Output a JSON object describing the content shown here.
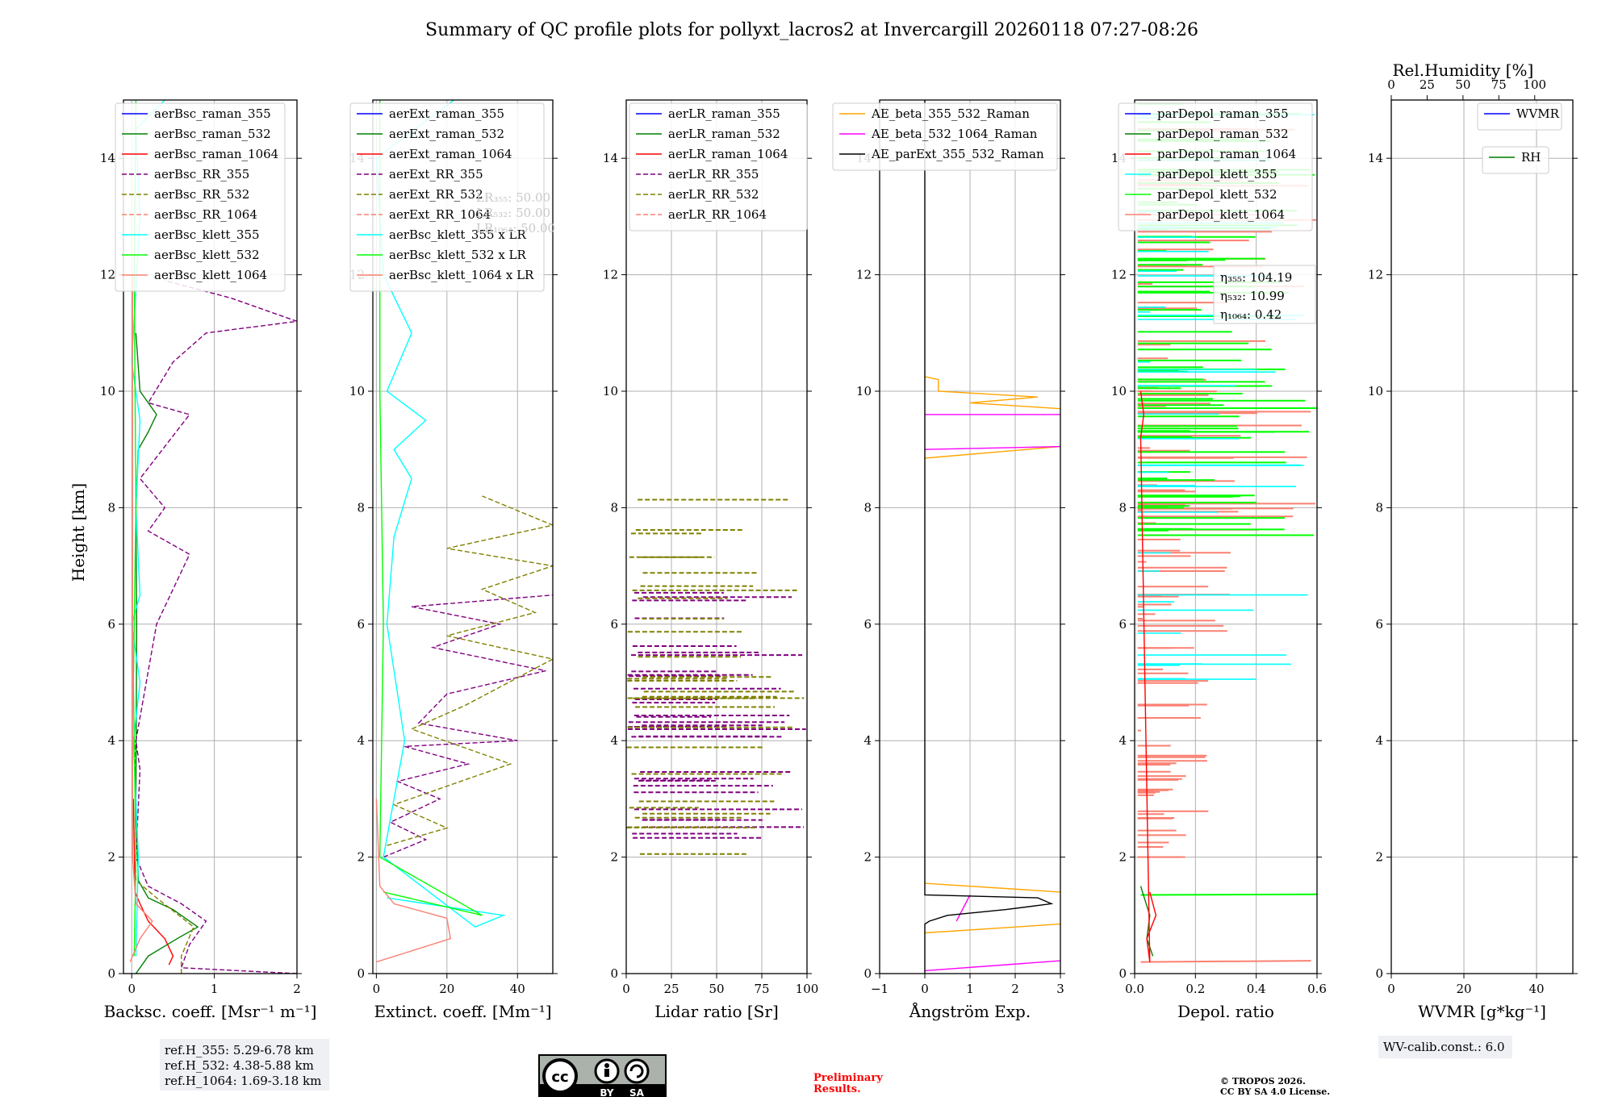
{
  "title": "Summary of QC profile plots for pollyxt_lacros2 at Invercargill 20260118 07:27-08:26",
  "ylabel": "Height [km]",
  "colors": {
    "blue": "#0000ff",
    "green": "#008000",
    "red": "#ff0000",
    "purple": "#800080",
    "olive": "#808000",
    "salmon": "#fa8072",
    "cyan": "#00ffff",
    "lime": "#00ff00",
    "orange": "#ffa500",
    "magenta": "#ff00ff",
    "black": "#000000",
    "redtext": "#ff0000"
  },
  "chart_data": [
    {
      "type": "line",
      "xlabel": "Backsc. coeff. [Msr⁻¹ m⁻¹]",
      "xlim": [
        -0.1,
        2
      ],
      "ylim": [
        0,
        15
      ],
      "xticks": [
        "0",
        "1",
        "2"
      ],
      "xtick_values": [
        0,
        1,
        2
      ],
      "yticks": [
        "0",
        "2",
        "4",
        "6",
        "8",
        "10",
        "12",
        "14"
      ],
      "legend_position": "top-left",
      "series": [
        {
          "name": "aerBsc_raman_355",
          "color": "blue",
          "style": "solid"
        },
        {
          "name": "aerBsc_raman_532",
          "color": "green",
          "style": "solid",
          "points": [
            [
              0.05,
              0
            ],
            [
              0.2,
              0.3
            ],
            [
              0.55,
              0.6
            ],
            [
              0.8,
              0.8
            ],
            [
              0.5,
              1.1
            ],
            [
              0.2,
              1.3
            ],
            [
              0.08,
              1.6
            ],
            [
              0.05,
              3
            ],
            [
              0.06,
              6
            ],
            [
              0.05,
              8
            ],
            [
              0.08,
              9
            ],
            [
              0.2,
              9.3
            ],
            [
              0.3,
              9.6
            ],
            [
              0.1,
              10
            ],
            [
              0.05,
              11
            ]
          ]
        },
        {
          "name": "aerBsc_raman_1064",
          "color": "red",
          "style": "solid",
          "points": [
            [
              0.45,
              0.15
            ],
            [
              0.5,
              0.3
            ],
            [
              0.4,
              0.6
            ],
            [
              0.2,
              0.9
            ],
            [
              0.1,
              1.2
            ],
            [
              0.04,
              1.4
            ],
            [
              0.02,
              3
            ]
          ]
        },
        {
          "name": "aerBsc_RR_355",
          "color": "purple",
          "style": "dashed",
          "points": [
            [
              2.0,
              0
            ],
            [
              0.6,
              0.1
            ],
            [
              0.7,
              0.5
            ],
            [
              0.9,
              0.9
            ],
            [
              0.6,
              1.2
            ],
            [
              0.2,
              1.5
            ],
            [
              0.05,
              2
            ],
            [
              0.1,
              3.5
            ],
            [
              0.05,
              4
            ],
            [
              0.3,
              6
            ],
            [
              0.7,
              7.2
            ],
            [
              0.2,
              7.6
            ],
            [
              0.4,
              8
            ],
            [
              0.1,
              8.5
            ],
            [
              0.7,
              9.6
            ],
            [
              0.2,
              9.8
            ],
            [
              0.5,
              10.5
            ],
            [
              0.9,
              11
            ],
            [
              2.0,
              11.2
            ],
            [
              1.2,
              11.6
            ],
            [
              0.4,
              11.9
            ]
          ]
        },
        {
          "name": "aerBsc_RR_532",
          "color": "olive",
          "style": "dashed",
          "points": [
            [
              0.6,
              0
            ],
            [
              0.6,
              0.3
            ],
            [
              0.75,
              0.8
            ],
            [
              0.3,
              1.3
            ],
            [
              0.05,
              1.6
            ],
            [
              0.04,
              4
            ]
          ]
        },
        {
          "name": "aerBsc_RR_1064",
          "color": "salmon",
          "style": "dashed"
        },
        {
          "name": "aerBsc_klett_355",
          "color": "cyan",
          "style": "solid",
          "points": [
            [
              0.05,
              0.3
            ],
            [
              0.08,
              2
            ],
            [
              0.02,
              4
            ],
            [
              0.1,
              5
            ],
            [
              0.0,
              6
            ],
            [
              0.1,
              6.5
            ],
            [
              0.05,
              8
            ],
            [
              0.1,
              9.5
            ],
            [
              0.0,
              10.5
            ],
            [
              0.1,
              13
            ],
            [
              0.05,
              14.5
            ],
            [
              0.4,
              15
            ]
          ]
        },
        {
          "name": "aerBsc_klett_532",
          "color": "lime",
          "style": "solid",
          "points": [
            [
              0.03,
              0.3
            ],
            [
              0.05,
              2
            ],
            [
              0.02,
              5
            ],
            [
              0.05,
              8
            ],
            [
              0.03,
              12
            ],
            [
              0.05,
              15
            ]
          ]
        },
        {
          "name": "aerBsc_klett_1064",
          "color": "salmon",
          "style": "solid",
          "points": [
            [
              -0.02,
              0.2
            ],
            [
              0.1,
              0.6
            ],
            [
              0.25,
              0.9
            ],
            [
              0.05,
              1.2
            ],
            [
              0.01,
              2
            ],
            [
              0.01,
              12
            ]
          ]
        }
      ]
    },
    {
      "type": "line",
      "xlabel": "Extinct. coeff. [Mm⁻¹]",
      "xlim": [
        -1,
        50
      ],
      "ylim": [
        0,
        15
      ],
      "xticks": [
        "0",
        "20",
        "40"
      ],
      "xtick_values": [
        0,
        20,
        40
      ],
      "yticks": [
        "0",
        "2",
        "4",
        "6",
        "8",
        "10",
        "12",
        "14"
      ],
      "legend_position": "top-left",
      "lidar_ratios": [
        "LR₃₅₅: 50.00",
        "LR₅₃₂: 50.00",
        "LR₁₀₆₄: 50.00"
      ],
      "series": [
        {
          "name": "aerExt_raman_355",
          "color": "blue",
          "style": "solid"
        },
        {
          "name": "aerExt_raman_532",
          "color": "green",
          "style": "solid"
        },
        {
          "name": "aerExt_raman_1064",
          "color": "red",
          "style": "solid"
        },
        {
          "name": "aerExt_RR_355",
          "color": "purple",
          "style": "dashed",
          "points": [
            [
              2,
              2
            ],
            [
              14,
              2.3
            ],
            [
              4,
              2.6
            ],
            [
              18,
              3
            ],
            [
              6,
              3.3
            ],
            [
              26,
              3.6
            ],
            [
              8,
              3.9
            ],
            [
              40,
              4
            ],
            [
              12,
              4.3
            ],
            [
              20,
              4.8
            ],
            [
              48,
              5.2
            ],
            [
              16,
              5.6
            ],
            [
              35,
              6
            ],
            [
              10,
              6.3
            ],
            [
              50,
              6.5
            ]
          ]
        },
        {
          "name": "aerExt_RR_532",
          "color": "olive",
          "style": "dashed",
          "points": [
            [
              3,
              2.2
            ],
            [
              20,
              2.5
            ],
            [
              5,
              2.9
            ],
            [
              38,
              3.6
            ],
            [
              10,
              4.2
            ],
            [
              25,
              4.6
            ],
            [
              50,
              5.4
            ],
            [
              20,
              5.8
            ],
            [
              45,
              6.2
            ],
            [
              30,
              6.6
            ],
            [
              50,
              7
            ],
            [
              20,
              7.3
            ],
            [
              50,
              7.7
            ],
            [
              30,
              8.2
            ]
          ]
        },
        {
          "name": "aerExt_RR_1064",
          "color": "salmon",
          "style": "dashed"
        },
        {
          "name": "aerBsc_klett_355 x LR",
          "color": "cyan",
          "style": "solid",
          "points": [
            [
              3,
              1.3
            ],
            [
              36,
              1.0
            ],
            [
              28,
              0.8
            ],
            [
              2,
              2
            ],
            [
              8,
              4
            ],
            [
              3,
              6
            ],
            [
              5,
              7.5
            ],
            [
              10,
              8.5
            ],
            [
              5,
              9
            ],
            [
              14,
              9.5
            ],
            [
              3,
              10
            ],
            [
              10,
              11
            ],
            [
              2,
              12
            ],
            [
              0,
              14
            ],
            [
              22,
              15
            ]
          ]
        },
        {
          "name": "aerBsc_klett_532 x LR",
          "color": "lime",
          "style": "solid",
          "points": [
            [
              2,
              1.4
            ],
            [
              30,
              1.0
            ],
            [
              1,
              2
            ],
            [
              2,
              6
            ],
            [
              1,
              10
            ],
            [
              1,
              15
            ]
          ]
        },
        {
          "name": "aerBsc_klett_1064 x LR",
          "color": "salmon",
          "style": "solid",
          "points": [
            [
              0,
              0.2
            ],
            [
              21,
              0.6
            ],
            [
              20,
              0.95
            ],
            [
              5,
              1.2
            ],
            [
              1,
              1.5
            ],
            [
              0,
              3
            ]
          ]
        }
      ]
    },
    {
      "type": "line",
      "xlabel": "Lidar ratio [Sr]",
      "xlim": [
        0,
        100
      ],
      "ylim": [
        0,
        15
      ],
      "xticks": [
        "0",
        "25",
        "50",
        "75",
        "100"
      ],
      "xtick_values": [
        0,
        25,
        50,
        75,
        100
      ],
      "yticks": [
        "0",
        "2",
        "4",
        "6",
        "8",
        "10",
        "12",
        "14"
      ],
      "legend_position": "top-left",
      "series": [
        {
          "name": "aerLR_raman_355",
          "color": "blue",
          "style": "solid"
        },
        {
          "name": "aerLR_raman_532",
          "color": "green",
          "style": "solid"
        },
        {
          "name": "aerLR_raman_1064",
          "color": "red",
          "style": "solid"
        },
        {
          "name": "aerLR_RR_355",
          "color": "purple",
          "style": "dashed",
          "range_km": [
            2.3,
            6.6
          ]
        },
        {
          "name": "aerLR_RR_532",
          "color": "olive",
          "style": "dashed",
          "range_km": [
            2.0,
            8.2
          ]
        },
        {
          "name": "aerLR_RR_1064",
          "color": "salmon",
          "style": "dashed"
        }
      ]
    },
    {
      "type": "line",
      "xlabel": "Ångström Exp.",
      "xlim": [
        -1,
        3
      ],
      "ylim": [
        0,
        15
      ],
      "xticks": [
        "−1",
        "0",
        "1",
        "2",
        "3"
      ],
      "xtick_values": [
        -1,
        0,
        1,
        2,
        3
      ],
      "yticks": [
        "0",
        "2",
        "4",
        "6",
        "8",
        "10",
        "12",
        "14"
      ],
      "legend_position": "top",
      "series": [
        {
          "name": "AE_beta_355_532_Raman",
          "color": "orange",
          "style": "solid",
          "points": [
            [
              3,
              1.4
            ],
            [
              0,
              1.55
            ]
          ]
        },
        {
          "name": "AE_beta_532_1064_Raman",
          "color": "magenta",
          "style": "solid",
          "points": [
            [
              0,
              0.05
            ],
            [
              3,
              0.22
            ]
          ]
        },
        {
          "name": "AE_parExt_355_532_Raman",
          "color": "black",
          "style": "solid",
          "points": [
            [
              0,
              0
            ],
            [
              0,
              0.85
            ],
            [
              0.1,
              0.9
            ],
            [
              0.5,
              1.0
            ],
            [
              1.8,
              1.1
            ],
            [
              2.8,
              1.2
            ],
            [
              2.5,
              1.3
            ],
            [
              0,
              1.35
            ],
            [
              0,
              15
            ]
          ]
        }
      ]
    },
    {
      "type": "line",
      "xlabel": "Depol. ratio",
      "xlim": [
        0,
        0.6
      ],
      "ylim": [
        0,
        15
      ],
      "xticks": [
        "0.0",
        "0.2",
        "0.4",
        "0.6"
      ],
      "xtick_values": [
        0,
        0.2,
        0.4,
        0.6
      ],
      "yticks": [
        "0",
        "2",
        "4",
        "6",
        "8",
        "10",
        "12",
        "14"
      ],
      "legend_position": "top-left",
      "eta": [
        "η₃₅₅: 104.19",
        "η₅₃₂: 10.99",
        "η₁₀₆₄: 0.42"
      ],
      "series": [
        {
          "name": "parDepol_raman_355",
          "color": "blue",
          "style": "solid"
        },
        {
          "name": "parDepol_raman_532",
          "color": "green",
          "style": "solid",
          "points": [
            [
              0.02,
              1.5
            ],
            [
              0.05,
              1.0
            ],
            [
              0.04,
              0.6
            ],
            [
              0.06,
              0.3
            ]
          ]
        },
        {
          "name": "parDepol_raman_1064",
          "color": "red",
          "style": "solid",
          "points": [
            [
              0.05,
              1.4
            ],
            [
              0.07,
              1.0
            ],
            [
              0.04,
              0.6
            ],
            [
              0.05,
              0.2
            ],
            [
              0.02,
              9.2
            ],
            [
              0.03,
              9.6
            ],
            [
              0.02,
              10
            ]
          ]
        },
        {
          "name": "parDepol_klett_355",
          "color": "cyan",
          "style": "solid"
        },
        {
          "name": "parDepol_klett_532",
          "color": "lime",
          "style": "solid"
        },
        {
          "name": "parDepol_klett_1064",
          "color": "salmon",
          "style": "solid"
        }
      ]
    },
    {
      "type": "line",
      "xlabel": "WVMR [g*kg⁻¹]",
      "x2label": "Rel.Humidity [%]",
      "xlim": [
        0,
        50
      ],
      "ylim": [
        0,
        15
      ],
      "xticks": [
        "0",
        "20",
        "40"
      ],
      "xtick_values": [
        0,
        20,
        40
      ],
      "x2ticks": [
        "0",
        "25",
        "50",
        "75",
        "100"
      ],
      "x2tick_values": [
        0,
        25,
        50,
        75,
        100
      ],
      "yticks": [
        "0",
        "2",
        "4",
        "6",
        "8",
        "10",
        "12",
        "14"
      ],
      "series": [
        {
          "name": "WVMR",
          "color": "blue",
          "style": "solid"
        },
        {
          "name": "RH",
          "color": "green",
          "style": "solid"
        }
      ]
    }
  ],
  "notes": {
    "refH": [
      "ref.H_355: 5.29-6.78 km",
      "ref.H_532: 4.38-5.88 km",
      "ref.H_1064: 1.69-3.18 km"
    ],
    "preliminary": [
      "Preliminary",
      "Results."
    ],
    "copyright": [
      "© TROPOS 2026.",
      "CC BY SA 4.0 License."
    ],
    "wv_calib": "WV-calib.const.: 6.0",
    "license_badge": [
      "cc",
      "BY",
      "SA"
    ]
  }
}
